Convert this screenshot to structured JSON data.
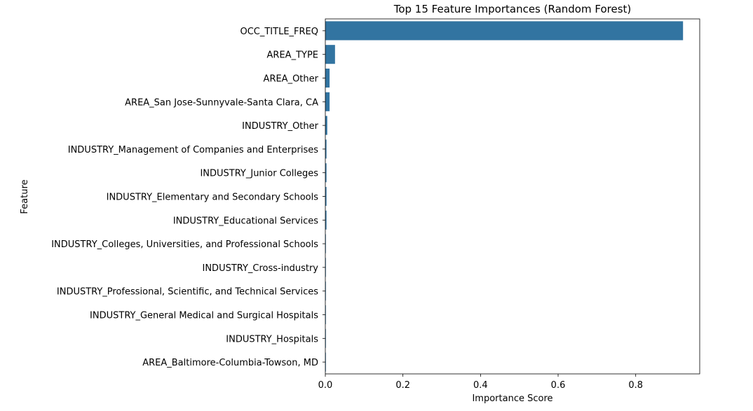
{
  "chart_data": {
    "type": "bar",
    "orientation": "horizontal",
    "title": "Top 15 Feature Importances (Random Forest)",
    "xlabel": "Importance Score",
    "ylabel": "Feature",
    "xlim": [
      0,
      0.965
    ],
    "xticks": [
      0,
      0.2,
      0.4,
      0.6,
      0.8
    ],
    "xtick_labels": [
      "0.0",
      "0.2",
      "0.4",
      "0.6",
      "0.8"
    ],
    "grid": false,
    "bar_color": "#3274a1",
    "categories": [
      "OCC_TITLE_FREQ",
      "AREA_TYPE",
      "AREA_Other",
      "AREA_San Jose-Sunnyvale-Santa Clara, CA",
      "INDUSTRY_Other",
      "INDUSTRY_Management of Companies and Enterprises",
      "INDUSTRY_Junior Colleges",
      "INDUSTRY_Elementary and Secondary Schools",
      "INDUSTRY_Educational Services",
      "INDUSTRY_Colleges, Universities, and Professional Schools",
      "INDUSTRY_Cross-industry",
      "INDUSTRY_Professional, Scientific, and Technical Services",
      "INDUSTRY_General Medical and Surgical Hospitals",
      "INDUSTRY_Hospitals",
      "AREA_Baltimore-Columbia-Towson, MD"
    ],
    "values": [
      0.922,
      0.025,
      0.011,
      0.011,
      0.005,
      0.003,
      0.003,
      0.003,
      0.003,
      0.001,
      0.001,
      0.001,
      0.001,
      0.001,
      0.001
    ]
  }
}
